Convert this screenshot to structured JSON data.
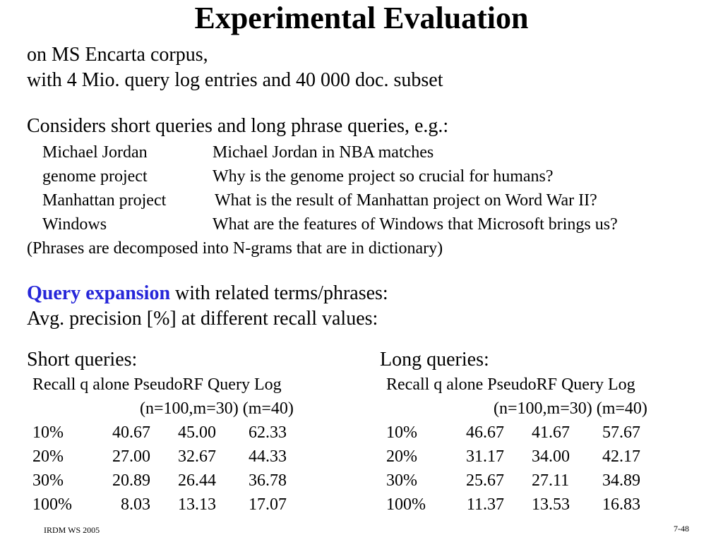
{
  "slide": {
    "title": "Experimental Evaluation",
    "intro_line1": "on MS Encarta corpus,",
    "intro_line2": "with 4 Mio. query log entries and 40 000 doc. subset",
    "considers_line": "Considers short queries and long phrase queries, e.g.:",
    "query_examples": [
      {
        "short": "Michael Jordan",
        "long": "Michael Jordan in NBA matches"
      },
      {
        "short": "genome project",
        "long": "Why is the genome project so crucial for humans?"
      },
      {
        "short": "Manhattan project",
        "long": "What is the result of Manhattan project on Word War II?"
      },
      {
        "short": "Windows",
        "long": "What are the features of Windows that Microsoft brings us?"
      }
    ],
    "phrases_note": "(Phrases are decomposed into N-grams that are in dictionary)",
    "expansion_highlight": "Query expansion",
    "expansion_rest": " with related terms/phrases:",
    "avg_precision_line": "Avg. precision [%] at different recall values:",
    "accent_color": "#2626d9"
  },
  "tables": {
    "short": {
      "heading": "Short queries:",
      "header_line1": "Recall  q alone  PseudoRF Query Log",
      "header_line2": "(n=100,m=30)  (m=40)",
      "rows": [
        [
          "10%",
          "40.67",
          "45.00",
          "62.33"
        ],
        [
          "20%",
          "27.00",
          "32.67",
          "44.33"
        ],
        [
          "30%",
          "20.89",
          "26.44",
          "36.78"
        ],
        [
          "100%",
          "8.03",
          "13.13",
          "17.07"
        ]
      ]
    },
    "long": {
      "heading": "Long queries:",
      "header_line1": "Recall  q alone  PseudoRF Query Log",
      "header_line2": "(n=100,m=30)  (m=40)",
      "rows": [
        [
          "10%",
          "46.67",
          "41.67",
          "57.67"
        ],
        [
          "20%",
          "31.17",
          "34.00",
          "42.17"
        ],
        [
          "30%",
          "25.67",
          "27.11",
          "34.89"
        ],
        [
          "100%",
          "11.37",
          "13.53",
          "16.83"
        ]
      ]
    }
  },
  "footer": {
    "left": "IRDM  WS 2005",
    "right": "7-48"
  }
}
